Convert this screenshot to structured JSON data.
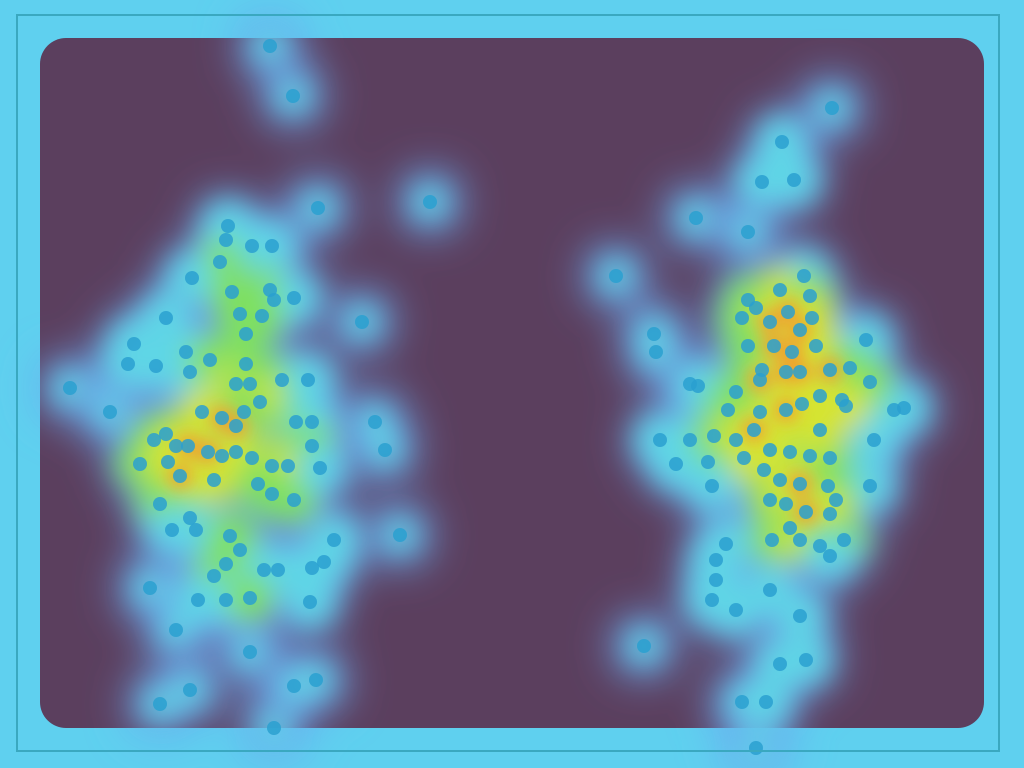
{
  "view": {
    "kind": "point-density-heatmap",
    "background_color": "#5fd0ef",
    "empty_region_color": "#5b3f5e",
    "frame_color": "#3aa8c0",
    "marker_color": "#2aa0d0",
    "density_ramp": [
      "#5b3f5e",
      "#6aa8f0",
      "#5fd6e6",
      "#7fe060",
      "#d6e430",
      "#f0a030",
      "#e47a2a"
    ],
    "marker_count": 210
  }
}
